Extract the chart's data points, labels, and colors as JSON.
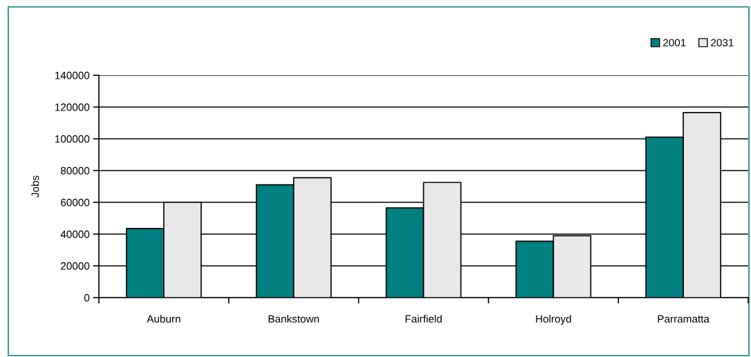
{
  "chart_data": {
    "type": "bar",
    "ylabel": "Jobs",
    "categories": [
      "Auburn",
      "Bankstown",
      "Fairfield",
      "Holroyd",
      "Parramatta"
    ],
    "series": [
      {
        "name": "2001",
        "color": "#008080",
        "values": [
          43500,
          71000,
          56500,
          35500,
          101000
        ]
      },
      {
        "name": "2031",
        "color": "#e8e8e8",
        "values": [
          60000,
          75500,
          72500,
          39000,
          116500
        ]
      }
    ],
    "ylim": [
      0,
      140000
    ],
    "yticks": [
      0,
      20000,
      40000,
      60000,
      80000,
      100000,
      120000,
      140000
    ],
    "grid": "y",
    "legend": "top right"
  }
}
